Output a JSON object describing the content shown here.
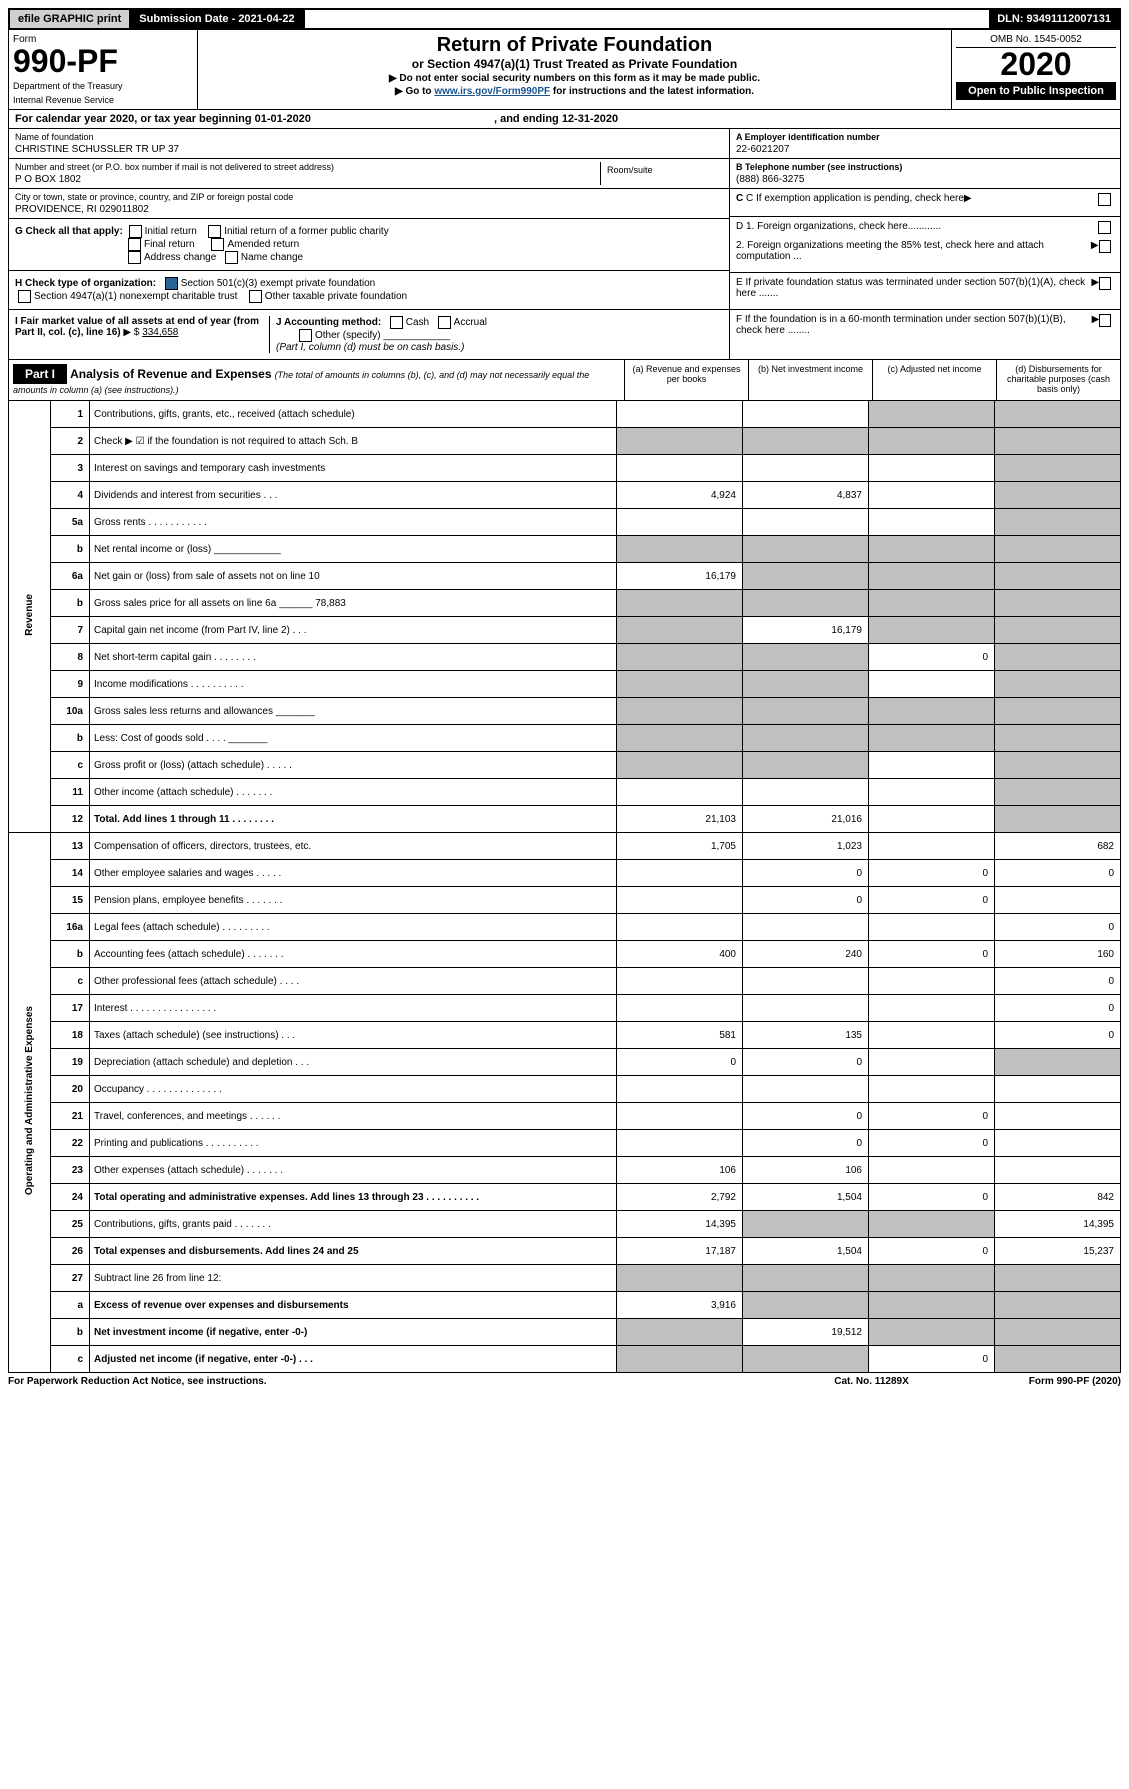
{
  "topbar": {
    "efile": "efile GRAPHIC print",
    "submission": "Submission Date - 2021-04-22",
    "dln": "DLN: 93491112007131"
  },
  "header": {
    "form_label": "Form",
    "form_num": "990-PF",
    "dept1": "Department of the Treasury",
    "dept2": "Internal Revenue Service",
    "title": "Return of Private Foundation",
    "subtitle": "or Section 4947(a)(1) Trust Treated as Private Foundation",
    "instr1": "▶ Do not enter social security numbers on this form as it may be made public.",
    "instr2": "▶ Go to",
    "instr2_link": "www.irs.gov/Form990PF",
    "instr2_after": "for instructions and the latest information.",
    "omb": "OMB No. 1545-0052",
    "year": "2020",
    "open": "Open to Public Inspection"
  },
  "cal_year": {
    "pre": "For calendar year 2020, or tax year beginning 01-01-2020",
    "mid": ", and ending 12-31-2020"
  },
  "info": {
    "name_lbl": "Name of foundation",
    "name": "CHRISTINE SCHUSSLER TR UP 37",
    "addr_lbl": "Number and street (or P.O. box number if mail is not delivered to street address)",
    "addr": "P O BOX 1802",
    "room_lbl": "Room/suite",
    "city_lbl": "City or town, state or province, country, and ZIP or foreign postal code",
    "city": "PROVIDENCE, RI  029011802",
    "a_lbl": "A Employer identification number",
    "a_val": "22-6021207",
    "b_lbl": "B Telephone number (see instructions)",
    "b_val": "(888) 866-3275",
    "c_lbl": "C If exemption application is pending, check here",
    "g_lbl": "G Check all that apply:",
    "g_initial": "Initial return",
    "g_initial_former": "Initial return of a former public charity",
    "g_final": "Final return",
    "g_amended": "Amended return",
    "g_address": "Address change",
    "g_name": "Name change",
    "h_lbl": "H Check type of organization:",
    "h_501c3": "Section 501(c)(3) exempt private foundation",
    "h_4947": "Section 4947(a)(1) nonexempt charitable trust",
    "h_other": "Other taxable private foundation",
    "i_lbl": "I Fair market value of all assets at end of year (from Part II, col. (c), line 16)",
    "i_val": "334,658",
    "j_lbl": "J Accounting method:",
    "j_cash": "Cash",
    "j_accrual": "Accrual",
    "j_other": "Other (specify)",
    "j_note": "(Part I, column (d) must be on cash basis.)",
    "d1": "D 1. Foreign organizations, check here",
    "d2": "2. Foreign organizations meeting the 85% test, check here and attach computation ...",
    "e": "E If private foundation status was terminated under section 507(b)(1)(A), check here .......",
    "f": "F If the foundation is in a 60-month termination under section 507(b)(1)(B), check here ........"
  },
  "part1": {
    "label": "Part I",
    "title": "Analysis of Revenue and Expenses",
    "sub": "(The total of amounts in columns (b), (c), and (d) may not necessarily equal the amounts in column (a) (see instructions).)",
    "col_a": "(a)   Revenue and expenses per books",
    "col_b": "(b)  Net investment income",
    "col_c": "(c)  Adjusted net income",
    "col_d": "(d)  Disbursements for charitable purposes (cash basis only)"
  },
  "sides": {
    "revenue": "Revenue",
    "expenses": "Operating and Administrative Expenses"
  },
  "rows": [
    {
      "n": "1",
      "d": "Contributions, gifts, grants, etc., received (attach schedule)",
      "a": "",
      "b": "",
      "c": "s",
      "ds": "s"
    },
    {
      "n": "2",
      "d": "Check ▶ ☑ if the foundation is not required to attach Sch. B",
      "a": "s",
      "b": "s",
      "c": "s",
      "ds": "s",
      "bold_not": true
    },
    {
      "n": "3",
      "d": "Interest on savings and temporary cash investments",
      "a": "",
      "b": "",
      "c": "",
      "ds": "s"
    },
    {
      "n": "4",
      "d": "Dividends and interest from securities   .   .   .",
      "a": "4,924",
      "b": "4,837",
      "c": "",
      "ds": "s"
    },
    {
      "n": "5a",
      "d": "Gross rents   .    .   .   .   .   .   .   .   .   .   .",
      "a": "",
      "b": "",
      "c": "",
      "ds": "s"
    },
    {
      "n": "b",
      "d": "Net rental income or (loss)  ____________",
      "a": "s",
      "b": "s",
      "c": "s",
      "ds": "s"
    },
    {
      "n": "6a",
      "d": "Net gain or (loss) from sale of assets not on line 10",
      "a": "16,179",
      "b": "s",
      "c": "s",
      "ds": "s"
    },
    {
      "n": "b",
      "d": "Gross sales price for all assets on line 6a ______ 78,883",
      "a": "s",
      "b": "s",
      "c": "s",
      "ds": "s"
    },
    {
      "n": "7",
      "d": "Capital gain net income (from Part IV, line 2)   .   .   .",
      "a": "s",
      "b": "16,179",
      "c": "s",
      "ds": "s"
    },
    {
      "n": "8",
      "d": "Net short-term capital gain   .   .   .   .   .   .   .   .",
      "a": "s",
      "b": "s",
      "c": "0",
      "ds": "s"
    },
    {
      "n": "9",
      "d": "Income modifications   .   .   .   .   .   .   .   .   .   .",
      "a": "s",
      "b": "s",
      "c": "",
      "ds": "s"
    },
    {
      "n": "10a",
      "d": "Gross sales less returns and allowances  _______",
      "a": "s",
      "b": "s",
      "c": "s",
      "ds": "s"
    },
    {
      "n": "b",
      "d": "Less: Cost of goods sold     .   .   .   .  _______",
      "a": "s",
      "b": "s",
      "c": "s",
      "ds": "s"
    },
    {
      "n": "c",
      "d": "Gross profit or (loss) (attach schedule)   .   .   .   .   .",
      "a": "s",
      "b": "s",
      "c": "",
      "ds": "s"
    },
    {
      "n": "11",
      "d": "Other income (attach schedule)   .   .   .   .   .   .   .",
      "a": "",
      "b": "",
      "c": "",
      "ds": "s"
    },
    {
      "n": "12",
      "d": "Total. Add lines 1 through 11    .   .   .   .   .   .   .   .",
      "a": "21,103",
      "b": "21,016",
      "c": "",
      "ds": "s",
      "bold": true
    }
  ],
  "exp_rows": [
    {
      "n": "13",
      "d": "Compensation of officers, directors, trustees, etc.",
      "a": "1,705",
      "b": "1,023",
      "c": "",
      "ds": "682"
    },
    {
      "n": "14",
      "d": "Other employee salaries and wages   .   .   .   .   .",
      "a": "",
      "b": "0",
      "c": "0",
      "ds": "0"
    },
    {
      "n": "15",
      "d": "Pension plans, employee benefits   .   .   .   .   .   .   .",
      "a": "",
      "b": "0",
      "c": "0",
      "ds": ""
    },
    {
      "n": "16a",
      "d": "Legal fees (attach schedule)   .   .   .   .   .   .   .   .   .",
      "a": "",
      "b": "",
      "c": "",
      "ds": "0"
    },
    {
      "n": "b",
      "d": "Accounting fees (attach schedule)   .   .   .   .   .   .   .",
      "a": "400",
      "b": "240",
      "c": "0",
      "ds": "160"
    },
    {
      "n": "c",
      "d": "Other professional fees (attach schedule)   .   .   .   .",
      "a": "",
      "b": "",
      "c": "",
      "ds": "0"
    },
    {
      "n": "17",
      "d": "Interest   .   .   .   .   .   .   .   .   .   .   .   .   .   .   .   .",
      "a": "",
      "b": "",
      "c": "",
      "ds": "0"
    },
    {
      "n": "18",
      "d": "Taxes (attach schedule) (see instructions)   .   .   .",
      "a": "581",
      "b": "135",
      "c": "",
      "ds": "0"
    },
    {
      "n": "19",
      "d": "Depreciation (attach schedule) and depletion   .   .   .",
      "a": "0",
      "b": "0",
      "c": "",
      "ds": "s"
    },
    {
      "n": "20",
      "d": "Occupancy   .   .   .   .   .   .   .   .   .   .   .   .   .   .",
      "a": "",
      "b": "",
      "c": "",
      "ds": ""
    },
    {
      "n": "21",
      "d": "Travel, conferences, and meetings   .   .   .   .   .   .",
      "a": "",
      "b": "0",
      "c": "0",
      "ds": ""
    },
    {
      "n": "22",
      "d": "Printing and publications   .   .   .   .   .   .   .   .   .   .",
      "a": "",
      "b": "0",
      "c": "0",
      "ds": ""
    },
    {
      "n": "23",
      "d": "Other expenses (attach schedule)   .   .   .   .   .   .   .",
      "a": "106",
      "b": "106",
      "c": "",
      "ds": ""
    },
    {
      "n": "24",
      "d": "Total operating and administrative expenses. Add lines 13 through 23   .   .   .   .   .   .   .   .   .   .",
      "a": "2,792",
      "b": "1,504",
      "c": "0",
      "ds": "842",
      "bold": true
    },
    {
      "n": "25",
      "d": "Contributions, gifts, grants paid   .   .   .   .   .   .   .",
      "a": "14,395",
      "b": "s",
      "c": "s",
      "ds": "14,395"
    },
    {
      "n": "26",
      "d": "Total expenses and disbursements. Add lines 24 and 25",
      "a": "17,187",
      "b": "1,504",
      "c": "0",
      "ds": "15,237",
      "bold": true
    },
    {
      "n": "27",
      "d": "Subtract line 26 from line 12:",
      "a": "s",
      "b": "s",
      "c": "s",
      "ds": "s"
    },
    {
      "n": "a",
      "d": "Excess of revenue over expenses and disbursements",
      "a": "3,916",
      "b": "s",
      "c": "s",
      "ds": "s",
      "bold": true
    },
    {
      "n": "b",
      "d": "Net investment income (if negative, enter -0-)",
      "a": "s",
      "b": "19,512",
      "c": "s",
      "ds": "s",
      "bold": true
    },
    {
      "n": "c",
      "d": "Adjusted net income (if negative, enter -0-)   .   .   .",
      "a": "s",
      "b": "s",
      "c": "0",
      "ds": "s",
      "bold": true
    }
  ],
  "footer": {
    "left": "For Paperwork Reduction Act Notice, see instructions.",
    "mid": "Cat. No. 11289X",
    "right": "Form 990-PF (2020)"
  }
}
